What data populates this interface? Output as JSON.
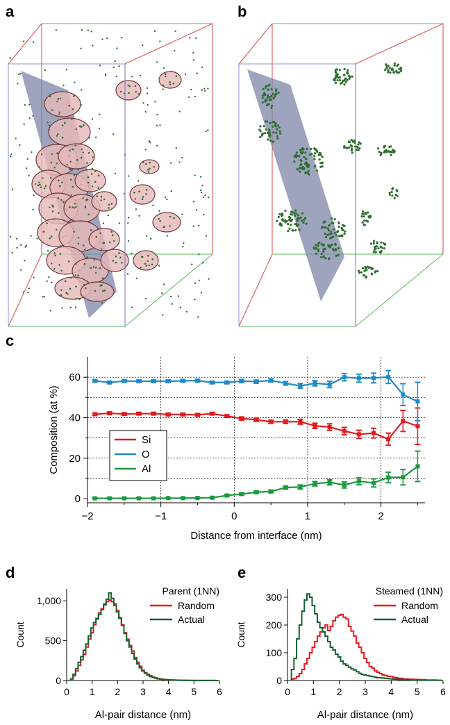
{
  "panels": {
    "a": "a",
    "b": "b",
    "c": "c",
    "d": "d",
    "e": "e"
  },
  "colors": {
    "si": "#e31a1c",
    "o": "#1f8ac9",
    "al": "#1a9a3c",
    "random": "#e8191f",
    "actual": "#17602d",
    "plane": "#7d86a8",
    "cluster_fill": "#e7b8b8",
    "atom": "#2e6e2e"
  },
  "chart_data": [
    {
      "panel": "a",
      "type": "other",
      "description_kind": "3d-atom-probe-reconstruction",
      "icons": [
        "interface-plane",
        "atom-clusters-isosurfaces",
        "al-atoms"
      ]
    },
    {
      "panel": "b",
      "type": "other",
      "description_kind": "3d-atom-probe-reconstruction",
      "icons": [
        "interface-plane",
        "al-atoms"
      ]
    },
    {
      "panel": "c",
      "type": "line",
      "xlabel": "Distance from interface (nm)",
      "ylabel": "Composition (at %)",
      "xlim": [
        -2,
        2.6
      ],
      "ylim": [
        -2,
        70
      ],
      "xticks": [
        "−2",
        "−1",
        "0",
        "1",
        "2"
      ],
      "yticks": [
        "0",
        "20",
        "40",
        "60"
      ],
      "grid": true,
      "legend_position": "left-lower",
      "x": [
        -1.9,
        -1.7,
        -1.5,
        -1.3,
        -1.1,
        -0.9,
        -0.7,
        -0.5,
        -0.3,
        -0.1,
        0.1,
        0.3,
        0.5,
        0.7,
        0.9,
        1.1,
        1.3,
        1.5,
        1.7,
        1.9,
        2.1,
        2.3,
        2.5
      ],
      "series": [
        {
          "name": "Si",
          "values": [
            41.7,
            42.2,
            41.8,
            42.0,
            42.0,
            41.6,
            41.6,
            41.4,
            42.0,
            40.8,
            39.6,
            39.0,
            38.0,
            38.0,
            38.0,
            36.0,
            35.4,
            33.4,
            31.8,
            32.4,
            29.4,
            38.4,
            35.8
          ],
          "errors": [
            0.6,
            0.6,
            0.6,
            0.6,
            0.6,
            0.6,
            0.6,
            0.6,
            0.6,
            0.6,
            0.8,
            0.8,
            0.8,
            0.9,
            1.2,
            1.3,
            1.6,
            1.8,
            2.0,
            2.4,
            3.0,
            5.2,
            9.0
          ]
        },
        {
          "name": "O",
          "values": [
            58.2,
            57.4,
            58.1,
            58.0,
            58.0,
            58.0,
            58.2,
            58.3,
            57.4,
            57.4,
            58.1,
            57.8,
            58.4,
            57.0,
            55.7,
            57.0,
            56.4,
            60.0,
            59.5,
            59.6,
            60.1,
            51.4,
            48.0
          ],
          "errors": [
            0.6,
            0.6,
            0.6,
            0.6,
            0.6,
            0.6,
            0.6,
            0.6,
            0.6,
            0.6,
            0.8,
            0.8,
            0.8,
            0.9,
            1.2,
            1.3,
            1.6,
            1.8,
            2.0,
            2.4,
            3.2,
            5.4,
            9.5
          ]
        },
        {
          "name": "Al",
          "values": [
            0.2,
            0.2,
            0.2,
            0.2,
            0.2,
            0.3,
            0.3,
            0.4,
            0.5,
            1.6,
            2.3,
            3.2,
            3.6,
            5.5,
            5.8,
            7.4,
            8.1,
            6.8,
            8.6,
            7.8,
            10.5,
            10.6,
            16.0
          ],
          "errors": [
            0.2,
            0.2,
            0.2,
            0.2,
            0.2,
            0.2,
            0.2,
            0.2,
            0.3,
            0.4,
            0.5,
            0.6,
            0.7,
            0.8,
            1.0,
            1.1,
            1.3,
            1.5,
            1.7,
            2.0,
            2.6,
            3.8,
            7.5
          ]
        }
      ]
    },
    {
      "panel": "d",
      "type": "line",
      "title": "Parent (1NN)",
      "xlabel": "Al-pair distance (nm)",
      "ylabel": "Count",
      "xlim": [
        0,
        6
      ],
      "ylim": [
        0,
        1150
      ],
      "xticks": [
        "0",
        "1",
        "2",
        "3",
        "4",
        "5",
        "6"
      ],
      "yticks": [
        "0",
        "500",
        "1,000"
      ],
      "legend_position": "top-right",
      "step_width": 0.1,
      "x": [
        0.2,
        0.3,
        0.4,
        0.5,
        0.6,
        0.7,
        0.8,
        0.9,
        1.0,
        1.1,
        1.2,
        1.3,
        1.4,
        1.5,
        1.6,
        1.7,
        1.8,
        1.9,
        2.0,
        2.1,
        2.2,
        2.3,
        2.4,
        2.5,
        2.6,
        2.7,
        2.8,
        2.9,
        3.0,
        3.1,
        3.2,
        3.3,
        3.4,
        3.5,
        3.6,
        3.7,
        3.8,
        3.9,
        4.0,
        4.1,
        4.2,
        4.3,
        4.4,
        4.5,
        4.6,
        4.7,
        4.8,
        4.9,
        5.0,
        5.1,
        5.2,
        5.3,
        5.4,
        5.5,
        5.6,
        5.7,
        5.8,
        5.9
      ],
      "series": [
        {
          "name": "Random",
          "values": [
            20,
            60,
            120,
            190,
            260,
            330,
            420,
            520,
            600,
            700,
            770,
            850,
            900,
            960,
            990,
            1010,
            990,
            940,
            880,
            790,
            700,
            600,
            520,
            440,
            370,
            290,
            230,
            180,
            130,
            100,
            80,
            60,
            45,
            35,
            25,
            20,
            15,
            12,
            10,
            8,
            6,
            5,
            4,
            3,
            3,
            2,
            2,
            2,
            1,
            1,
            1,
            1,
            1,
            1,
            1,
            1,
            1,
            0
          ]
        },
        {
          "name": "Actual",
          "values": [
            20,
            80,
            150,
            230,
            300,
            380,
            460,
            560,
            660,
            730,
            780,
            830,
            890,
            950,
            1020,
            1100,
            1030,
            960,
            860,
            780,
            690,
            590,
            500,
            420,
            340,
            270,
            210,
            160,
            120,
            90,
            70,
            50,
            40,
            30,
            22,
            17,
            13,
            10,
            8,
            6,
            5,
            4,
            3,
            3,
            2,
            2,
            2,
            1,
            1,
            1,
            1,
            1,
            1,
            1,
            1,
            1,
            1,
            0
          ]
        }
      ]
    },
    {
      "panel": "e",
      "type": "line",
      "title": "Steamed (1NN)",
      "xlabel": "Al-pair distance (nm)",
      "ylabel": "Count",
      "xlim": [
        0,
        6
      ],
      "ylim": [
        0,
        330
      ],
      "xticks": [
        "0",
        "1",
        "2",
        "3",
        "4",
        "5",
        "6"
      ],
      "yticks": [
        "0",
        "100",
        "200",
        "300"
      ],
      "legend_position": "top-right",
      "step_width": 0.1,
      "x": [
        0.2,
        0.3,
        0.4,
        0.5,
        0.6,
        0.7,
        0.8,
        0.9,
        1.0,
        1.1,
        1.2,
        1.3,
        1.4,
        1.5,
        1.6,
        1.7,
        1.8,
        1.9,
        2.0,
        2.1,
        2.2,
        2.3,
        2.4,
        2.5,
        2.6,
        2.7,
        2.8,
        2.9,
        3.0,
        3.1,
        3.2,
        3.3,
        3.4,
        3.5,
        3.6,
        3.7,
        3.8,
        3.9,
        4.0,
        4.1,
        4.2,
        4.3,
        4.4,
        4.5,
        4.6,
        4.7,
        4.8,
        4.9,
        5.0,
        5.1,
        5.2,
        5.3,
        5.4,
        5.5,
        5.6,
        5.7,
        5.8,
        5.9
      ],
      "series": [
        {
          "name": "Random",
          "values": [
            5,
            8,
            15,
            25,
            40,
            60,
            80,
            100,
            120,
            140,
            160,
            175,
            190,
            200,
            180,
            195,
            215,
            228,
            235,
            238,
            228,
            222,
            195,
            178,
            160,
            135,
            120,
            100,
            80,
            65,
            50,
            45,
            35,
            30,
            25,
            20,
            18,
            15,
            15,
            12,
            10,
            8,
            8,
            6,
            6,
            5,
            5,
            4,
            4,
            3,
            3,
            3,
            2,
            2,
            2,
            2,
            1,
            1
          ]
        },
        {
          "name": "Actual",
          "values": [
            40,
            80,
            150,
            200,
            250,
            290,
            312,
            300,
            270,
            240,
            210,
            190,
            175,
            160,
            140,
            120,
            110,
            95,
            85,
            70,
            60,
            55,
            48,
            42,
            38,
            32,
            26,
            22,
            20,
            18,
            16,
            14,
            12,
            10,
            10,
            9,
            8,
            7,
            6,
            5,
            5,
            4,
            4,
            3,
            3,
            3,
            2,
            2,
            2,
            2,
            1,
            1,
            1,
            1,
            1,
            1,
            1,
            1
          ]
        }
      ]
    }
  ]
}
